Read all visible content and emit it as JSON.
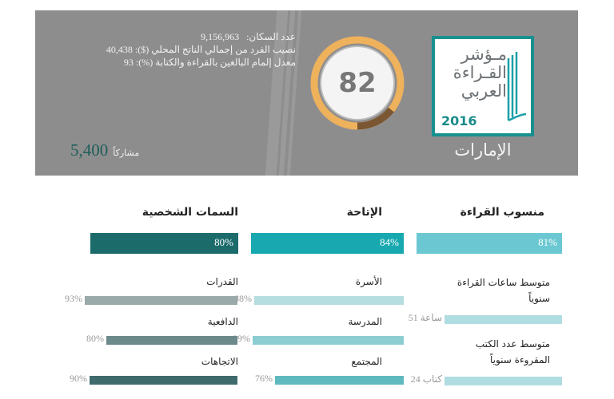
{
  "header": {
    "stats": [
      {
        "label": "عدد السكان:",
        "value": "9,156,963"
      },
      {
        "label": "نصيب الفرد من إجمالي الناتج المحلي ($):",
        "value": "40,438"
      },
      {
        "label": "معدل إلمام البالغين بالقراءة والكتابة (%):",
        "value": "93"
      }
    ],
    "participants_value": "5,400",
    "participants_label": "مشاركاً",
    "score": "82",
    "score_value": 82,
    "logo": {
      "line1": "مـؤشر",
      "line2": "القـراءة",
      "line3": "العربي",
      "year": "2016"
    },
    "country": "الإمارات",
    "colors": {
      "gauge": "#eeb15c",
      "gauge_dark": "#7a5632",
      "logo_teal": "#18908f"
    }
  },
  "columns": [
    {
      "title": "منسوب القراءة",
      "value": "81%",
      "color": "#6bc8d2",
      "items": [
        {
          "label": "متوسط ساعات القراءة سنوياً",
          "value": "51 ساعة"
        },
        {
          "label": "متوسط عدد الكتب المقروءة سنوياً",
          "value": "24 كتاب"
        }
      ]
    },
    {
      "title": "الإتاحة",
      "value": "84%",
      "color": "#17a8b0",
      "items": [
        {
          "label": "الأسرة",
          "value": "88%",
          "pct": 88
        },
        {
          "label": "المدرسة",
          "value": "89%",
          "pct": 89
        },
        {
          "label": "المجتمع",
          "value": "76%",
          "pct": 76
        }
      ]
    },
    {
      "title": "السمات الشخصية",
      "value": "80%",
      "color": "#1b6b6b",
      "items": [
        {
          "label": "القدرات",
          "value": "93%",
          "pct": 93
        },
        {
          "label": "الدافعية",
          "value": "80%",
          "pct": 80
        },
        {
          "label": "الاتجاهات",
          "value": "90%",
          "pct": 90
        }
      ]
    }
  ]
}
